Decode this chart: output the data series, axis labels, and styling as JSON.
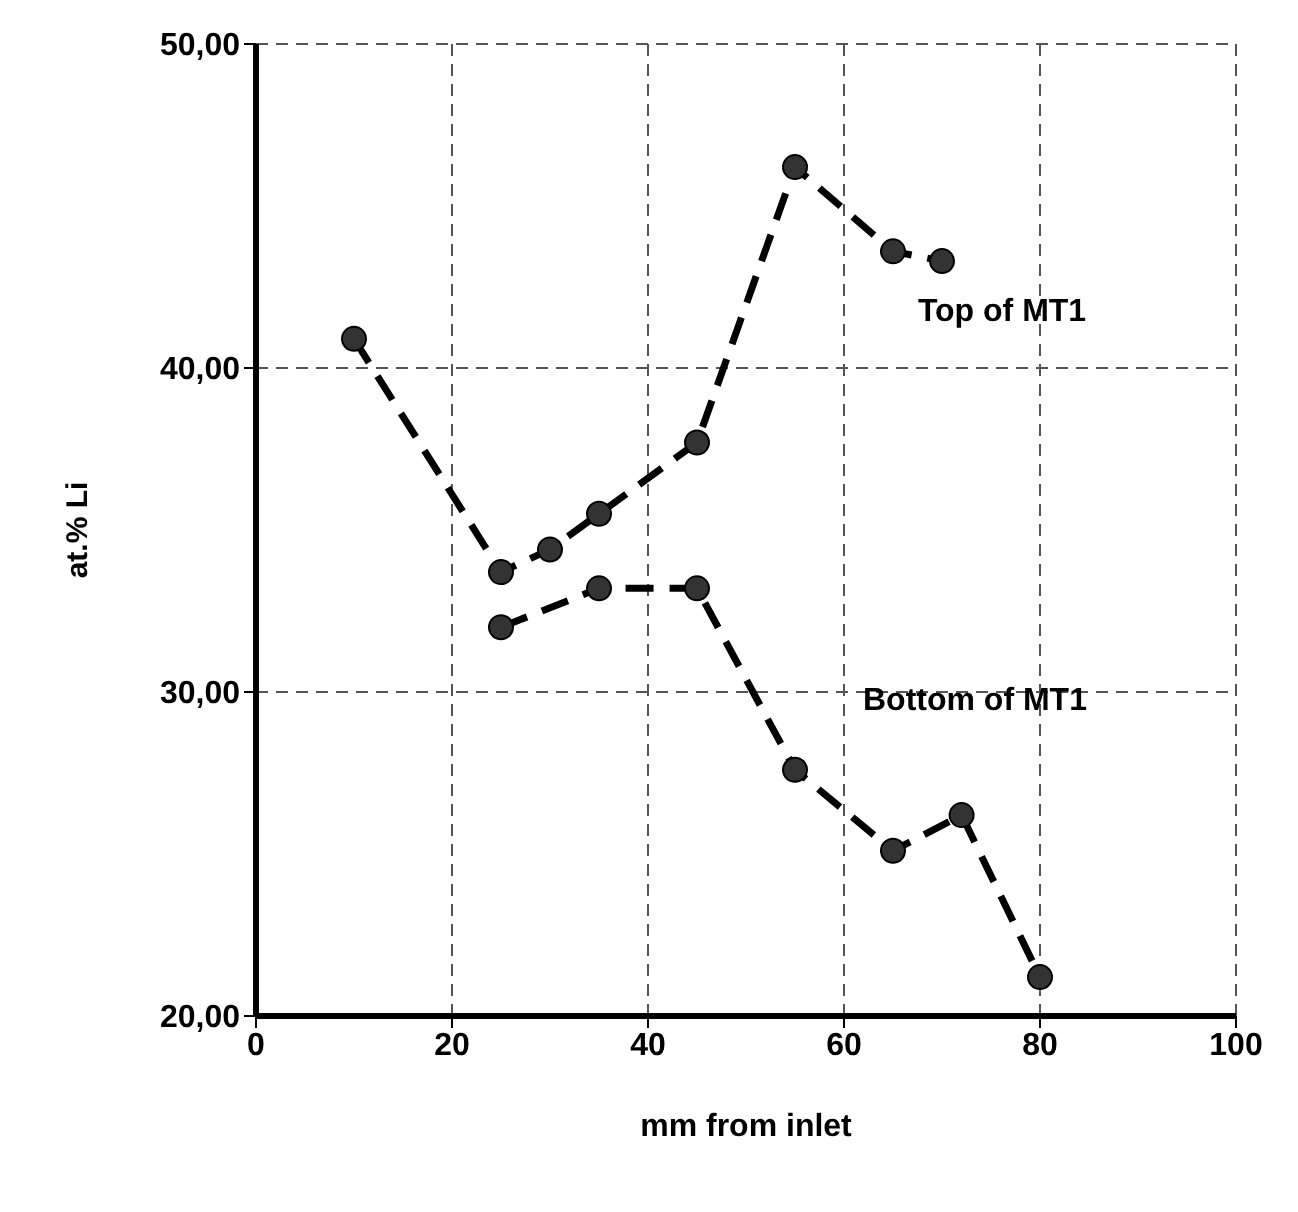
{
  "chart_data": {
    "type": "line",
    "xlabel": "mm from inlet",
    "ylabel": "at.% Li",
    "xlim": [
      0,
      100
    ],
    "xticks": [
      0,
      20,
      40,
      60,
      80,
      100
    ],
    "ylim": [
      20,
      50
    ],
    "yticks": [
      {
        "value": 20,
        "label": "20,00"
      },
      {
        "value": 30,
        "label": "30,00"
      },
      {
        "value": 40,
        "label": "40,00"
      },
      {
        "value": 50,
        "label": "50,00"
      }
    ],
    "grid": true,
    "marker": "circle",
    "line_style": "dashed",
    "series": [
      {
        "name": "Top of MT1",
        "color": "#333333",
        "x": [
          10,
          25,
          30,
          35,
          45,
          55,
          65,
          70
        ],
        "values": [
          40.9,
          33.7,
          34.4,
          35.5,
          37.7,
          46.2,
          43.6,
          43.3
        ]
      },
      {
        "name": "Bottom of MT1",
        "color": "#333333",
        "x": [
          25,
          35,
          45,
          55,
          65,
          72,
          80
        ],
        "values": [
          32.0,
          33.2,
          33.2,
          27.6,
          25.1,
          26.2,
          21.2
        ]
      }
    ]
  }
}
